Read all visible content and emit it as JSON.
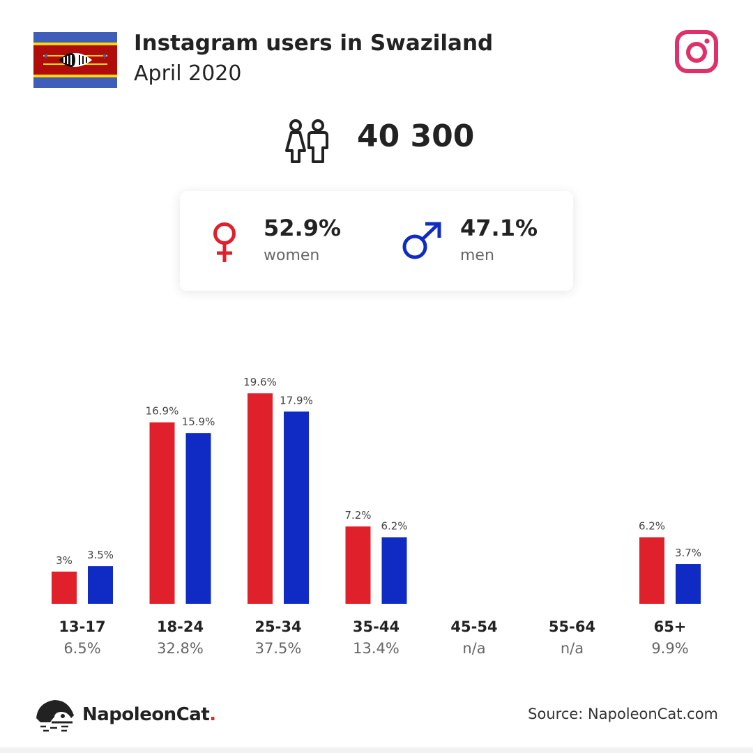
{
  "header": {
    "title": "Instagram users in Swaziland",
    "subtitle": "April 2020",
    "flag_icon": "swaziland-flag",
    "platform_icon": "instagram-icon"
  },
  "total": {
    "icon": "people-icon",
    "value": "40 300"
  },
  "gender": {
    "women": {
      "icon": "female-icon",
      "value": "52.9%",
      "label": "women",
      "color": "#e0202a"
    },
    "men": {
      "icon": "male-icon",
      "value": "47.1%",
      "label": "men",
      "color": "#0f2bc4"
    }
  },
  "chart_data": {
    "type": "bar",
    "categories": [
      "13-17",
      "18-24",
      "25-34",
      "35-44",
      "45-54",
      "55-64",
      "65+"
    ],
    "category_totals": [
      "6.5%",
      "32.8%",
      "37.5%",
      "13.4%",
      "n/a",
      "n/a",
      "9.9%"
    ],
    "series": [
      {
        "key": "women",
        "values": [
          3,
          16.9,
          19.6,
          7.2,
          null,
          null,
          6.2
        ],
        "labels": [
          "3%",
          "16.9%",
          "19.6%",
          "7.2%",
          "",
          "",
          "6.2%"
        ],
        "color": "#e0202a"
      },
      {
        "key": "men",
        "values": [
          3.5,
          15.9,
          17.9,
          6.2,
          null,
          null,
          3.7
        ],
        "labels": [
          "3.5%",
          "15.9%",
          "17.9%",
          "6.2%",
          "",
          "",
          "3.7%"
        ],
        "color": "#0f2bc4"
      }
    ],
    "ylim": [
      0,
      20
    ],
    "grid": false,
    "legend": "none"
  },
  "footer": {
    "logo_icon": "napoleoncat-logo",
    "brand": "NapoleonCat",
    "brand_dot": ".",
    "source": "Source: NapoleonCat.com"
  }
}
